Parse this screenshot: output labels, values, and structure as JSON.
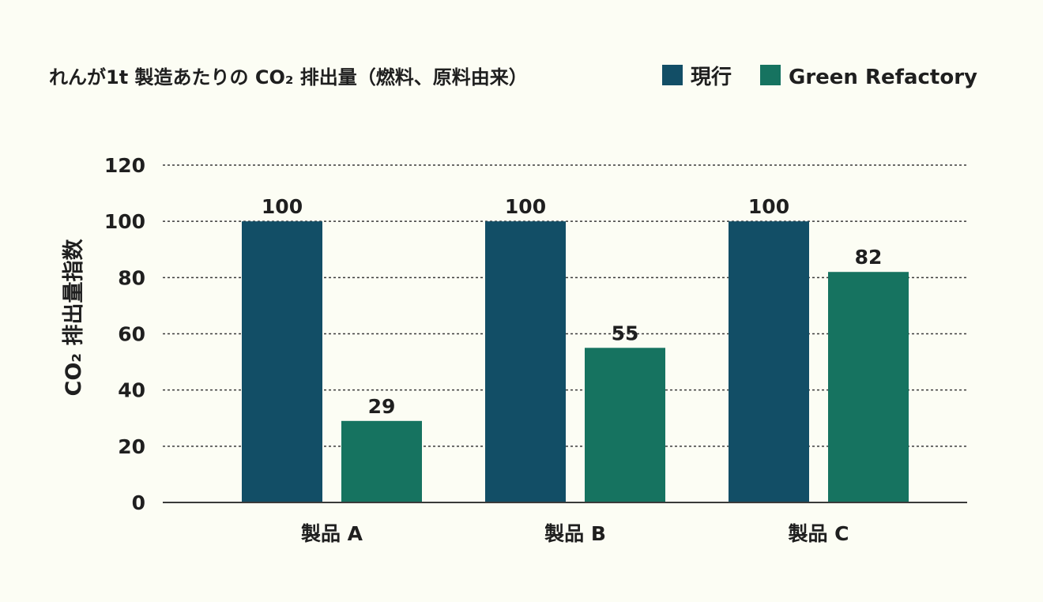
{
  "chart_data": {
    "type": "bar",
    "title": "れんが1t 製造あたりの CO₂ 排出量（燃料、原料由来）",
    "ylabel": "CO₂ 排出量指数",
    "xlabel": "",
    "categories": [
      "製品 A",
      "製品 B",
      "製品 C"
    ],
    "ylim": [
      0,
      120
    ],
    "yticks": [
      0,
      20,
      40,
      60,
      80,
      100,
      120
    ],
    "grid": true,
    "legend_position": "top-right",
    "series": [
      {
        "name": "現行",
        "color": "#124e66",
        "values": [
          100,
          100,
          100
        ]
      },
      {
        "name": "Green Refactory",
        "color": "#167360",
        "values": [
          29,
          55,
          82
        ]
      }
    ]
  }
}
